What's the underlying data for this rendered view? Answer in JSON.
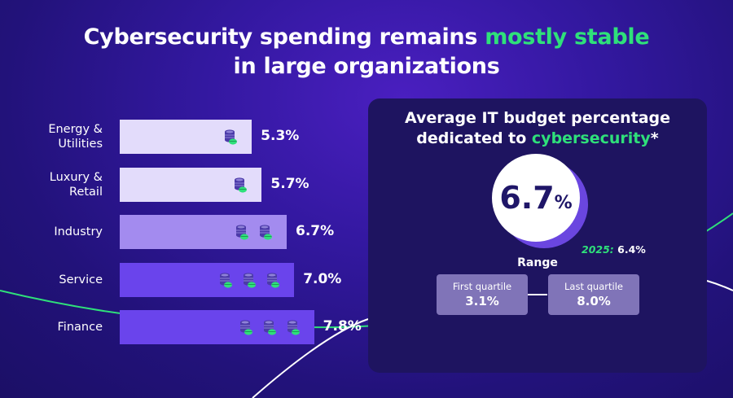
{
  "title": {
    "part1": "Cybersecurity spending remains ",
    "highlight": "mostly stable",
    "part2": "in large organizations"
  },
  "colors": {
    "background": "#2a169a",
    "accent_green": "#2fe07a",
    "bar_light": "#e3dcfb",
    "bar_mid": "#a38bef",
    "bar_dark": "#6a44ec",
    "card_bg": "#1e1460"
  },
  "icons": {
    "bar_icon": "coin-stack-icon"
  },
  "chart_data": {
    "type": "bar",
    "orientation": "horizontal",
    "categories": [
      "Energy & Utilities",
      "Luxury & Retail",
      "Industry",
      "Service",
      "Finance"
    ],
    "category_lines": [
      [
        "Energy &",
        "Utilities"
      ],
      [
        "Luxury &",
        "Retail"
      ],
      [
        "Industry"
      ],
      [
        "Service"
      ],
      [
        "Finance"
      ]
    ],
    "values": [
      5.3,
      5.7,
      6.7,
      7.0,
      7.8
    ],
    "value_labels": [
      "5.3%",
      "5.7%",
      "6.7%",
      "7.0%",
      "7.8%"
    ],
    "icon_counts": [
      1,
      1,
      2,
      3,
      3
    ],
    "unit": "%"
  },
  "summary": {
    "title_part1": "Average IT budget percentage",
    "title_part2": "dedicated to ",
    "title_highlight": "cybersecurity",
    "title_suffix": "*",
    "value": "6.7",
    "value_unit": "%",
    "previous_year_label": "2025:",
    "previous_value": "6.4%",
    "range_label": "Range",
    "first_quartile_label": "First quartile",
    "first_quartile_value": "3.1%",
    "last_quartile_label": "Last quartile",
    "last_quartile_value": "8.0%"
  }
}
